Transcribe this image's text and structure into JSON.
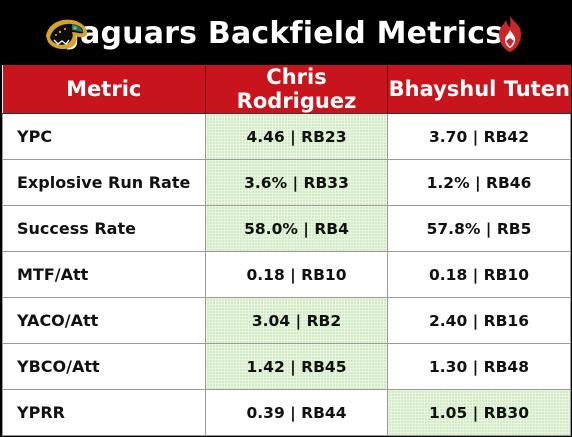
{
  "header": {
    "title": "Jaguars Backfield Metrics",
    "left_logo_icon": "jaguar-head-logo-icon",
    "right_logo_icon": "flame-shield-logo-icon"
  },
  "colors": {
    "title_bg": "#000000",
    "header_bg": "#c8141c",
    "highlight": "#e8f6df"
  },
  "table": {
    "columns": [
      "Metric",
      "Chris Rodriguez",
      "Bhayshul Tuten"
    ],
    "rows": [
      {
        "metric": "YPC",
        "p1": "4.46 | RB23",
        "p2": "3.70 | RB42",
        "best": "p1"
      },
      {
        "metric": "Explosive Run Rate",
        "p1": "3.6% | RB33",
        "p2": "1.2% | RB46",
        "best": "p1"
      },
      {
        "metric": "Success Rate",
        "p1": "58.0% | RB4",
        "p2": "57.8% | RB5",
        "best": "p1"
      },
      {
        "metric": "MTF/Att",
        "p1": "0.18 | RB10",
        "p2": "0.18 | RB10",
        "best": ""
      },
      {
        "metric": "YACO/Att",
        "p1": "3.04 | RB2",
        "p2": "2.40 | RB16",
        "best": "p1"
      },
      {
        "metric": "YBCO/Att",
        "p1": "1.42 | RB45",
        "p2": "1.30 | RB48",
        "best": "p1"
      },
      {
        "metric": "YPRR",
        "p1": "0.39 | RB44",
        "p2": "1.05 | RB30",
        "best": "p2"
      }
    ]
  }
}
